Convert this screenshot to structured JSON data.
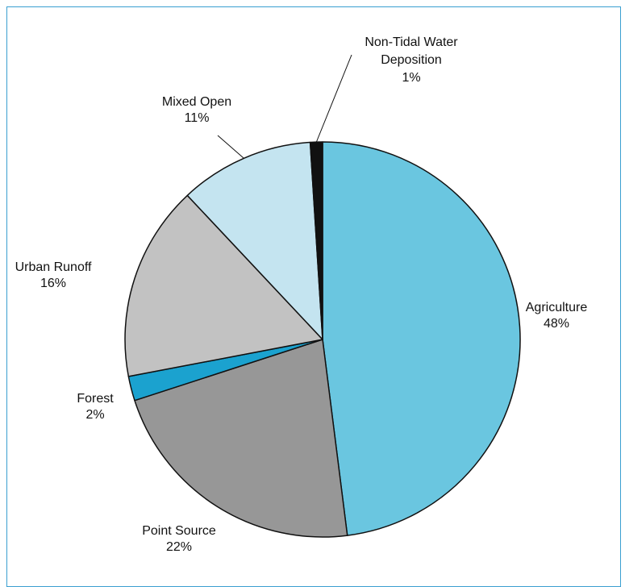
{
  "chart_data": {
    "type": "pie",
    "title": "",
    "start_angle_deg": 0,
    "direction": "clockwise",
    "legend": "none",
    "slices": [
      {
        "label": "Agriculture",
        "value": 48,
        "value_label": "48%",
        "color": "#6ac6e0"
      },
      {
        "label": "Point Source",
        "value": 22,
        "value_label": "22%",
        "color": "#979797"
      },
      {
        "label": "Forest",
        "value": 2,
        "value_label": "2%",
        "color": "#1ba2cf"
      },
      {
        "label": "Urban Runoff",
        "value": 16,
        "value_label": "16%",
        "color": "#c2c2c2"
      },
      {
        "label": "Mixed Open",
        "value": 11,
        "value_label": "11%",
        "color": "#c4e4f0"
      },
      {
        "label": "Non-Tidal Water Deposition",
        "value": 1,
        "value_label": "1%",
        "color": "#111111"
      }
    ]
  },
  "colors": {
    "frame": "#3a9fd1",
    "outline": "#111111"
  }
}
